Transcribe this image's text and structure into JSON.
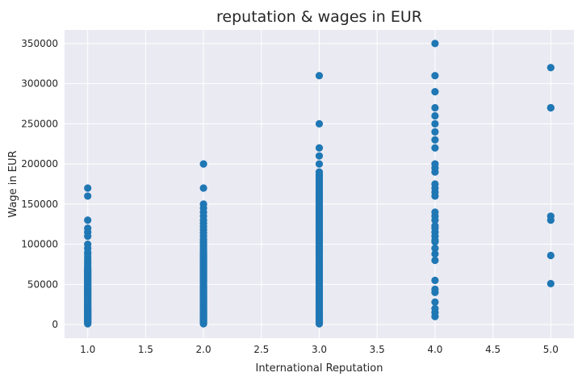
{
  "chart_data": {
    "type": "scatter",
    "title": "reputation & wages in EUR",
    "xlabel": "International Reputation",
    "ylabel": "Wage in EUR",
    "xlim": [
      0.8,
      5.2
    ],
    "ylim": [
      -17000,
      367000
    ],
    "xticks": [
      1.0,
      1.5,
      2.0,
      2.5,
      3.0,
      3.5,
      4.0,
      4.5,
      5.0
    ],
    "xtick_labels": [
      "1.0",
      "1.5",
      "2.0",
      "2.5",
      "3.0",
      "3.5",
      "4.0",
      "4.5",
      "5.0"
    ],
    "yticks": [
      0,
      50000,
      100000,
      150000,
      200000,
      250000,
      300000,
      350000
    ],
    "ytick_labels": [
      "0",
      "50000",
      "100000",
      "150000",
      "200000",
      "250000",
      "300000",
      "350000"
    ],
    "grid": true,
    "background_color": "#eaeaf2",
    "grid_color": "#ffffff",
    "marker_color": "#1f77b4",
    "series": [
      {
        "x": 1,
        "y": [
          1000,
          2000,
          3000,
          4000,
          5000,
          6000,
          7000,
          8000,
          9000,
          10000,
          11000,
          12000,
          13000,
          14000,
          15000,
          16000,
          17000,
          18000,
          19000,
          20000,
          21000,
          22000,
          23000,
          24000,
          25000,
          26000,
          27000,
          28000,
          29000,
          30000,
          31000,
          32000,
          33000,
          34000,
          35000,
          36000,
          37000,
          38000,
          39000,
          40000,
          41000,
          42000,
          43000,
          44000,
          45000,
          46000,
          47000,
          48000,
          49000,
          50000,
          51000,
          52000,
          53000,
          54000,
          55000,
          56000,
          57000,
          58000,
          59000,
          60000,
          61000,
          62000,
          63000,
          64000,
          65000,
          66000,
          67000,
          68000,
          69000,
          70000,
          72000,
          74000,
          76000,
          78000,
          80000,
          82000,
          85000,
          88000,
          90000,
          95000,
          100000,
          110000,
          115000,
          120000,
          130000,
          160000,
          170000
        ]
      },
      {
        "x": 2,
        "y": [
          1000,
          2000,
          3000,
          4000,
          5000,
          6000,
          7000,
          8000,
          9000,
          10000,
          11000,
          12000,
          13000,
          14000,
          15000,
          16000,
          17000,
          18000,
          19000,
          20000,
          21000,
          22000,
          23000,
          24000,
          25000,
          26000,
          27000,
          28000,
          29000,
          30000,
          31000,
          32000,
          33000,
          34000,
          35000,
          36000,
          37000,
          38000,
          39000,
          40000,
          41000,
          42000,
          43000,
          44000,
          45000,
          46000,
          47000,
          48000,
          49000,
          50000,
          51000,
          52000,
          53000,
          54000,
          55000,
          56000,
          57000,
          58000,
          59000,
          60000,
          61000,
          62000,
          63000,
          64000,
          65000,
          66000,
          67000,
          68000,
          69000,
          70000,
          71000,
          72000,
          73000,
          74000,
          75000,
          76000,
          77000,
          78000,
          79000,
          80000,
          81000,
          82000,
          83000,
          84000,
          85000,
          86000,
          87000,
          88000,
          89000,
          90000,
          92000,
          95000,
          98000,
          100000,
          103000,
          106000,
          110000,
          114000,
          118000,
          122000,
          126000,
          130000,
          135000,
          140000,
          145000,
          150000,
          170000,
          200000
        ]
      },
      {
        "x": 3,
        "y": [
          1000,
          3000,
          5000,
          7000,
          9000,
          11000,
          13000,
          15000,
          17000,
          19000,
          21000,
          23000,
          25000,
          27000,
          29000,
          31000,
          33000,
          35000,
          37000,
          39000,
          41000,
          43000,
          45000,
          47000,
          49000,
          51000,
          53000,
          55000,
          57000,
          59000,
          61000,
          63000,
          65000,
          67000,
          69000,
          71000,
          73000,
          75000,
          77000,
          79000,
          81000,
          83000,
          85000,
          87000,
          89000,
          91000,
          93000,
          95000,
          97000,
          99000,
          101000,
          103000,
          105000,
          107000,
          109000,
          111000,
          113000,
          115000,
          117000,
          119000,
          121000,
          123000,
          125000,
          127000,
          129000,
          131000,
          133000,
          135000,
          137000,
          139000,
          141000,
          143000,
          145000,
          147000,
          149000,
          151000,
          153000,
          155000,
          157000,
          159000,
          161000,
          163000,
          165000,
          167000,
          169000,
          171000,
          173000,
          175000,
          177000,
          179000,
          181000,
          183000,
          185000,
          187000,
          190000,
          200000,
          210000,
          220000,
          250000,
          310000
        ]
      },
      {
        "x": 4,
        "y": [
          10000,
          15000,
          20000,
          28000,
          40000,
          44000,
          55000,
          80000,
          88000,
          95000,
          103000,
          105000,
          110000,
          115000,
          120000,
          123000,
          130000,
          135000,
          140000,
          160000,
          165000,
          170000,
          175000,
          190000,
          195000,
          200000,
          220000,
          230000,
          240000,
          250000,
          260000,
          270000,
          290000,
          310000,
          350000
        ]
      },
      {
        "x": 5,
        "y": [
          51000,
          86000,
          130000,
          135000,
          270000,
          270000,
          320000
        ]
      }
    ]
  }
}
